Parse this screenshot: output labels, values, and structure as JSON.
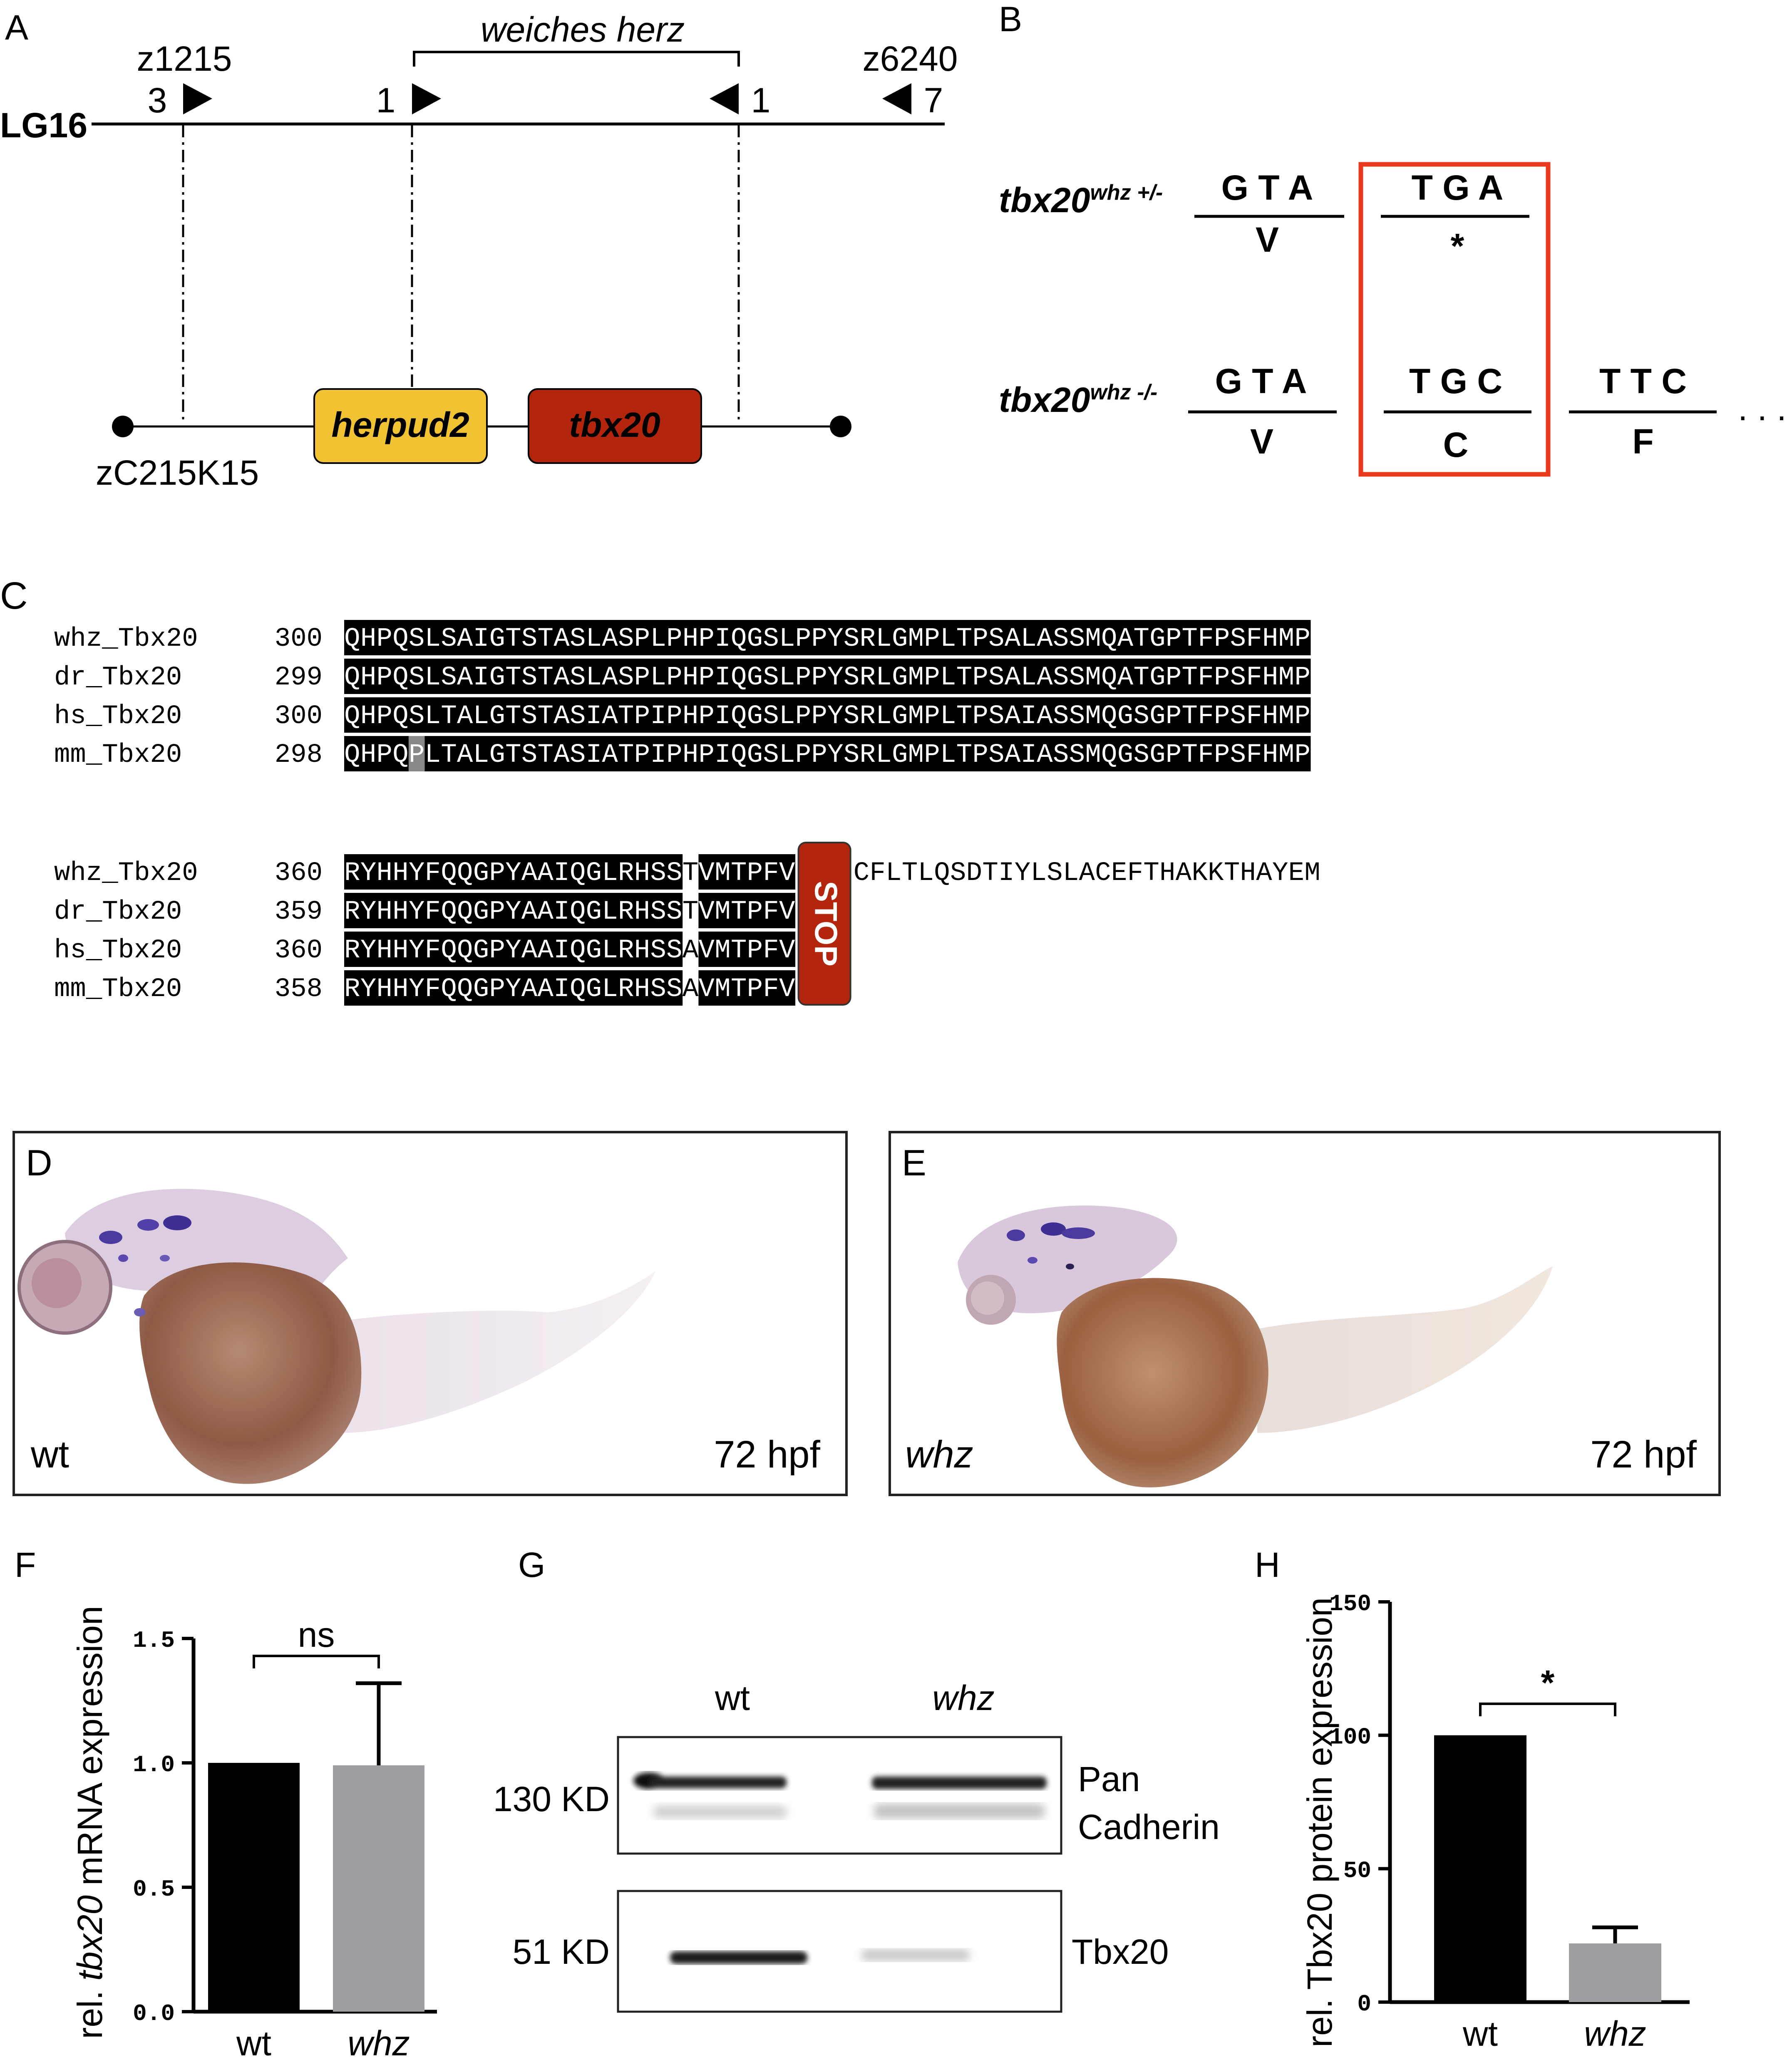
{
  "panelA": {
    "letter": "A",
    "interval_label": "weiches herz",
    "marker_left": {
      "name": "z1215",
      "count": "3"
    },
    "marker_right": {
      "name": "z6240",
      "count": "7"
    },
    "recomb_left": "1",
    "recomb_right": "1",
    "chromosome": "LG16",
    "bac": "zC215K15",
    "gene1": "herpud2",
    "gene2": "tbx20",
    "colors": {
      "herpud2": "#F1C232",
      "tbx20": "#B3260D"
    }
  },
  "panelB": {
    "letter": "B",
    "het_label": "tbx20",
    "het_sup": "whz +/-",
    "hom_label": "tbx20",
    "hom_sup": "whz -/-",
    "het_codon1": "G T A",
    "het_aa1": "V",
    "het_codon2": "T G A",
    "het_aa2": "*",
    "hom_codon1": "G T A",
    "hom_aa1": "V",
    "hom_codon2": "T G C",
    "hom_aa2": "C",
    "hom_codon3": "T T C",
    "hom_aa3": "F",
    "ellipsis": ". . .",
    "box_color": "#E8391D"
  },
  "panelC": {
    "letter": "C",
    "block1": {
      "rows": [
        {
          "name": "whz_Tbx20",
          "start": "300",
          "seq": "QHPQSLSAIGTSTASLASPLPHPIQGSLPPYSRLGMPLTPSALASSMQATGPTFPSFHMP"
        },
        {
          "name": "dr_Tbx20",
          "start": "299",
          "seq": "QHPQSLSAIGTSTASLASPLPHPIQGSLPPYSRLGMPLTPSALASSMQATGPTFPSFHMP"
        },
        {
          "name": "hs_Tbx20",
          "start": "300",
          "seq": "QHPQSLTALGTSTASIATPIPHPIQGSLPPYSRLGMPLTPSAIASSMQGSGPTFPSFHMP"
        },
        {
          "name": "mm_Tbx20",
          "start": "298",
          "seq": "QHPQPLTALGTSTASIATPIPHPIQGSLPPYSRLGMPLTPSAIASSMQGSGPTFPSFHMP"
        }
      ]
    },
    "block2": {
      "rows": [
        {
          "name": "whz_Tbx20",
          "start": "360",
          "seq": "RYHHYFQQGPYAAIQGLRHSSTVMTPFV",
          "tail": "CFLTLQSDTIYLSLACEFTHAKKTHAYEM"
        },
        {
          "name": "dr_Tbx20",
          "start": "359",
          "seq": "RYHHYFQQGPYAAIQGLRHSSTVMTPFV",
          "tail": ""
        },
        {
          "name": "hs_Tbx20",
          "start": "360",
          "seq": "RYHHYFQQGPYAAIQGLRHSSAVMTPFV",
          "tail": ""
        },
        {
          "name": "mm_Tbx20",
          "start": "358",
          "seq": "RYHHYFQQGPYAAIQGLRHSSAVMTPFV",
          "tail": ""
        }
      ]
    },
    "stop_label": "STOP",
    "stop_color": "#B3260D"
  },
  "panelD": {
    "letter": "D",
    "genotype": "wt",
    "stage": "72 hpf"
  },
  "panelE": {
    "letter": "E",
    "genotype": "whz",
    "stage": "72 hpf"
  },
  "panelF": {
    "letter": "F",
    "chart_data": {
      "type": "bar",
      "categories": [
        "wt",
        "whz"
      ],
      "values": [
        1.0,
        0.99
      ],
      "errors": [
        0,
        0.33
      ],
      "ylabel_prefix": "rel. ",
      "ylabel_italic": "tbx20",
      "ylabel_suffix": " mRNA expression",
      "ylim": [
        0,
        1.5
      ],
      "yticks": [
        "0.0",
        "0.5",
        "1.0",
        "1.5"
      ],
      "significance": "ns",
      "colors": [
        "#000000",
        "#9D9DA2"
      ]
    }
  },
  "panelG": {
    "letter": "G",
    "lane1": "wt",
    "lane2": "whz",
    "band1_size": "130 KD",
    "band1_name_line1": "Pan",
    "band1_name_line2": "Cadherin",
    "band2_size": "51 KD",
    "band2_name": "Tbx20"
  },
  "panelH": {
    "letter": "H",
    "chart_data": {
      "type": "bar",
      "categories": [
        "wt",
        "whz"
      ],
      "values": [
        100,
        22
      ],
      "errors": [
        0,
        6
      ],
      "ylabel": "rel. Tbx20 protein expression",
      "ylim": [
        0,
        150
      ],
      "yticks": [
        "0",
        "50",
        "100",
        "150"
      ],
      "significance": "*",
      "colors": [
        "#000000",
        "#9D9DA2"
      ]
    }
  }
}
